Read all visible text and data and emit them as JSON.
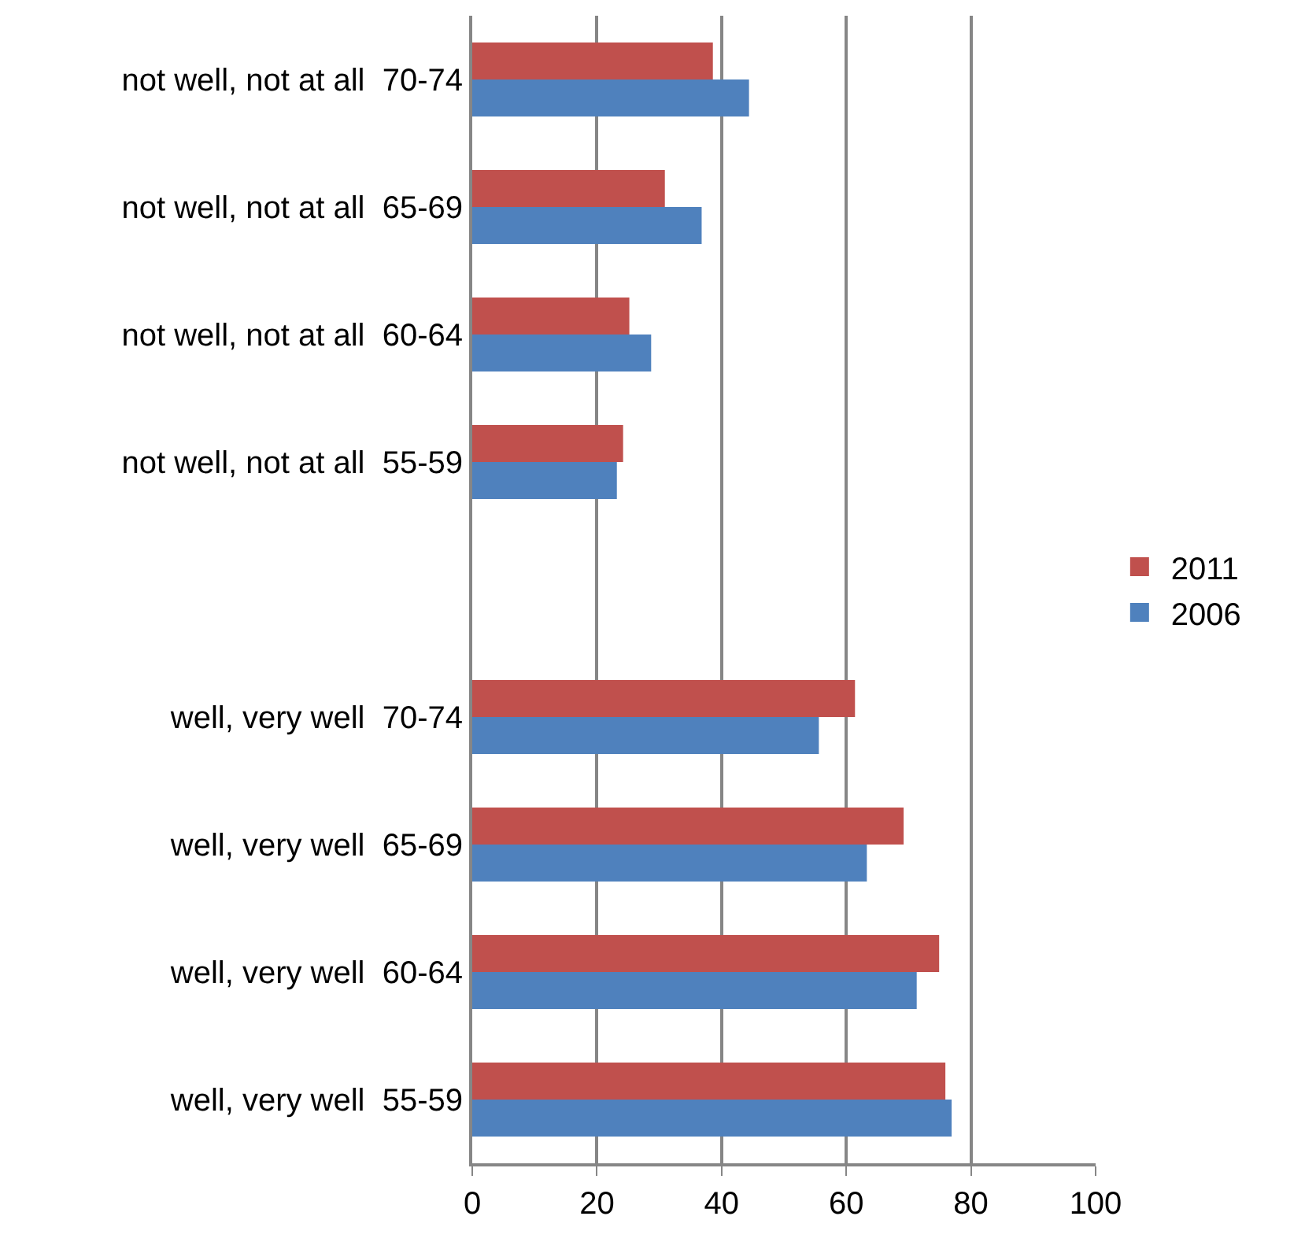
{
  "chart_data": {
    "type": "bar",
    "orientation": "horizontal",
    "categories": [
      "not well, not at all  70-74",
      "not well, not at all  65-69",
      "not well, not at all  60-64",
      "not well, not at all  55-59",
      null,
      "well, very well  70-74",
      "well, very well  65-69",
      "well, very well  60-64",
      "well, very well  55-59"
    ],
    "series": [
      {
        "name": "2011",
        "color": "#c0504d",
        "values": [
          38.6,
          30.9,
          25.2,
          24.2,
          null,
          61.4,
          69.2,
          74.9,
          75.9
        ]
      },
      {
        "name": "2006",
        "color": "#4f81bd",
        "values": [
          44.4,
          36.8,
          28.7,
          23.2,
          null,
          55.6,
          63.3,
          71.3,
          76.9
        ]
      }
    ],
    "xlim": [
      0,
      100
    ],
    "xticks": [
      0,
      20,
      40,
      60,
      80,
      100
    ],
    "grid": "x",
    "legend": "right"
  }
}
